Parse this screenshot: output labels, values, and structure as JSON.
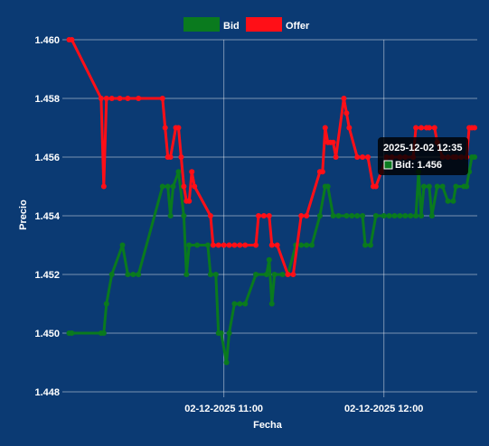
{
  "chart_data": {
    "type": "line",
    "xlabel": "Fecha",
    "ylabel": "Precio",
    "ylim": [
      1.448,
      1.46
    ],
    "y_ticks": [
      "1.448",
      "1.450",
      "1.452",
      "1.454",
      "1.456",
      "1.458",
      "1.460"
    ],
    "x_tick_labels": [
      {
        "label": "02-12-2025 11:00",
        "minute": 0
      },
      {
        "label": "02-12-2025 12:00",
        "minute": 60
      }
    ],
    "x_range_minutes": [
      -58.5,
      95.0
    ],
    "legend_position": "top",
    "grid": true,
    "series": [
      {
        "name": "Bid",
        "color": "#0a7a1e",
        "points": [
          [
            -58,
            1.45
          ],
          [
            -57,
            1.45
          ],
          [
            -46,
            1.45
          ],
          [
            -45,
            1.45
          ],
          [
            -44,
            1.451
          ],
          [
            -42,
            1.452
          ],
          [
            -38,
            1.453
          ],
          [
            -36,
            1.452
          ],
          [
            -34,
            1.452
          ],
          [
            -32,
            1.452
          ],
          [
            -23,
            1.455
          ],
          [
            -21,
            1.455
          ],
          [
            -20,
            1.454
          ],
          [
            -19,
            1.455
          ],
          [
            -17,
            1.4555
          ],
          [
            -15,
            1.454
          ],
          [
            -14,
            1.452
          ],
          [
            -13,
            1.453
          ],
          [
            -10,
            1.453
          ],
          [
            -6,
            1.453
          ],
          [
            -5,
            1.452
          ],
          [
            -3,
            1.452
          ],
          [
            -2,
            1.45
          ],
          [
            -1,
            1.45
          ],
          [
            1,
            1.449
          ],
          [
            2,
            1.45
          ],
          [
            4,
            1.451
          ],
          [
            6,
            1.451
          ],
          [
            8,
            1.451
          ],
          [
            12,
            1.452
          ],
          [
            16,
            1.452
          ],
          [
            17,
            1.4525
          ],
          [
            18,
            1.451
          ],
          [
            19,
            1.452
          ],
          [
            22,
            1.452
          ],
          [
            24,
            1.452
          ],
          [
            27,
            1.453
          ],
          [
            29,
            1.453
          ],
          [
            31,
            1.453
          ],
          [
            33,
            1.453
          ],
          [
            36,
            1.454
          ],
          [
            38,
            1.455
          ],
          [
            39,
            1.455
          ],
          [
            41,
            1.454
          ],
          [
            43,
            1.454
          ],
          [
            46,
            1.454
          ],
          [
            48,
            1.454
          ],
          [
            50,
            1.454
          ],
          [
            52,
            1.454
          ],
          [
            53,
            1.453
          ],
          [
            55,
            1.453
          ],
          [
            57,
            1.454
          ],
          [
            60,
            1.454
          ],
          [
            62,
            1.454
          ],
          [
            64,
            1.454
          ],
          [
            66,
            1.454
          ],
          [
            68,
            1.454
          ],
          [
            70,
            1.454
          ],
          [
            72,
            1.454
          ],
          [
            73,
            1.4555
          ],
          [
            74,
            1.454
          ],
          [
            75,
            1.455
          ],
          [
            77,
            1.455
          ],
          [
            78,
            1.454
          ],
          [
            80,
            1.455
          ],
          [
            82,
            1.455
          ],
          [
            84,
            1.4545
          ],
          [
            86,
            1.4545
          ],
          [
            87,
            1.455
          ],
          [
            90,
            1.455
          ],
          [
            91,
            1.455
          ],
          [
            92,
            1.4555
          ],
          [
            93,
            1.456
          ],
          [
            94,
            1.456
          ]
        ]
      },
      {
        "name": "Offer",
        "color": "#ff0f17",
        "points": [
          [
            -58,
            1.46
          ],
          [
            -57,
            1.46
          ],
          [
            -46,
            1.458
          ],
          [
            -45,
            1.455
          ],
          [
            -44,
            1.458
          ],
          [
            -42,
            1.458
          ],
          [
            -39,
            1.458
          ],
          [
            -36,
            1.458
          ],
          [
            -32,
            1.458
          ],
          [
            -23,
            1.458
          ],
          [
            -22,
            1.457
          ],
          [
            -21,
            1.456
          ],
          [
            -20,
            1.456
          ],
          [
            -18,
            1.457
          ],
          [
            -17,
            1.457
          ],
          [
            -16,
            1.456
          ],
          [
            -15,
            1.455
          ],
          [
            -14,
            1.4545
          ],
          [
            -13,
            1.4545
          ],
          [
            -12,
            1.4555
          ],
          [
            -11,
            1.455
          ],
          [
            -5,
            1.454
          ],
          [
            -4,
            1.453
          ],
          [
            -2,
            1.453
          ],
          [
            0,
            1.453
          ],
          [
            2,
            1.453
          ],
          [
            4,
            1.453
          ],
          [
            6,
            1.453
          ],
          [
            8,
            1.453
          ],
          [
            12,
            1.453
          ],
          [
            13,
            1.454
          ],
          [
            15,
            1.454
          ],
          [
            17,
            1.454
          ],
          [
            18,
            1.453
          ],
          [
            20,
            1.453
          ],
          [
            24,
            1.452
          ],
          [
            26,
            1.452
          ],
          [
            29,
            1.454
          ],
          [
            31,
            1.454
          ],
          [
            36,
            1.4555
          ],
          [
            37,
            1.4555
          ],
          [
            38,
            1.457
          ],
          [
            39,
            1.4565
          ],
          [
            40,
            1.4565
          ],
          [
            41,
            1.4565
          ],
          [
            42,
            1.456
          ],
          [
            45,
            1.458
          ],
          [
            46,
            1.4575
          ],
          [
            47,
            1.457
          ],
          [
            50,
            1.456
          ],
          [
            52,
            1.456
          ],
          [
            54,
            1.456
          ],
          [
            56,
            1.455
          ],
          [
            57,
            1.455
          ],
          [
            59,
            1.4555
          ],
          [
            61,
            1.456
          ],
          [
            63,
            1.456
          ],
          [
            66,
            1.456
          ],
          [
            68,
            1.456
          ],
          [
            71,
            1.456
          ],
          [
            72,
            1.457
          ],
          [
            74,
            1.457
          ],
          [
            76,
            1.457
          ],
          [
            77,
            1.457
          ],
          [
            79,
            1.457
          ],
          [
            80,
            1.4565
          ],
          [
            82,
            1.456
          ],
          [
            84,
            1.456
          ],
          [
            86,
            1.456
          ],
          [
            87,
            1.456
          ],
          [
            89,
            1.456
          ],
          [
            91,
            1.456
          ],
          [
            92,
            1.457
          ],
          [
            93,
            1.457
          ],
          [
            94,
            1.457
          ]
        ]
      }
    ],
    "tooltip": {
      "title": "2025-12-02 12:35",
      "series": "Bid",
      "label": "Bid: 1.456"
    }
  }
}
